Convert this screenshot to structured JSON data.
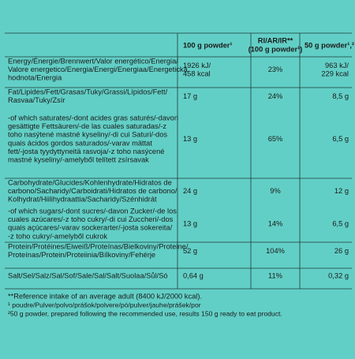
{
  "header": {
    "col_100g": "100 g powder¹",
    "col_ri": [
      "RI/AR/IR**",
      "(100 g powder¹)"
    ],
    "col_50g": "50 g powder¹,²"
  },
  "table": {
    "rows": [
      {
        "label": [
          "Energy/Énergie/Brennwert/Valor energético/Energia/",
          "Valore energetico/Energia/Energi/Energiaa/Energetická",
          "hodnota/Energia"
        ],
        "per_100g": [
          "1926 kJ/",
          "458 kcal"
        ],
        "ri": [
          "23%"
        ],
        "per_50g": [
          "963 kJ/",
          "229 kcal"
        ]
      },
      {
        "label": [
          "Fat/Lipides/Fett/Grasas/Tuky/Grassi/Lípidos/Fett/",
          "Rasvaa/Tuky/Zsír"
        ],
        "per_100g": [
          "17 g"
        ],
        "ri": [
          "24%"
        ],
        "per_50g": [
          "8,5 g"
        ]
      },
      {
        "label": [
          "-of which saturates/-dont acides gras saturés/-davon",
          "gesättigte Fettsäuren/-de las cuales saturadas/-z",
          "toho nasýtené mastné kyseliny/-di cui Saturi/-dos",
          "quais ácidos gordos saturados/-varav mättat",
          "fett/-josta tyydyttyneitä rasvoja/-z toho nasýcené",
          "mastné kyseliny/-amelyből telített zsírsavak"
        ],
        "per_100g": [
          "13 g"
        ],
        "ri": [
          "65%"
        ],
        "per_50g": [
          "6,5 g"
        ]
      },
      {
        "label": [
          "Carbohydrate/Glucides/Kohlenhydrate/Hidratos de",
          "carbono/Sacharidy/Carboidrati/Hidratos de carbono/",
          "Kolhydrat/Hiilihydraattia/Sacharidy/Szénhidrát"
        ],
        "per_100g": [
          "24 g"
        ],
        "ri": [
          "9%"
        ],
        "per_50g": [
          "12 g"
        ]
      },
      {
        "label": [
          "-of which sugars/-dont sucres/-davon Zucker/-de los",
          "cuales azúcares/-z toho cukry/-di cui Zuccheri/-dos",
          "quais açúcares/-varav sockerarter/-josta sokereita/",
          "-z toho cukry/-amelyből cukrok"
        ],
        "per_100g": [
          "13 g"
        ],
        "ri": [
          "14%"
        ],
        "per_50g": [
          "6,5 g"
        ]
      },
      {
        "label": [
          "Protein/Protéines/Eiweiß/Proteínas/Bielkoviny/Proteine/",
          "Proteínas/Protein/Proteiinia/Bílkoviny/Fehérje"
        ],
        "per_100g": [
          "52 g"
        ],
        "ri": [
          "104%"
        ],
        "per_50g": [
          "26 g"
        ]
      },
      {
        "label": [
          "Salt/Sel/Salz/Sal/Sof/Sale/Sal/Salt/Suolaa/Sůl/Só"
        ],
        "per_100g": [
          "0,64 g"
        ],
        "ri": [
          "11%"
        ],
        "per_50g": [
          "0,32 g"
        ]
      }
    ]
  },
  "footnotes": [
    "**Reference intake of an average adult (8400 kJ/2000 kcal).",
    "¹ poudre/Pulver/polvo/prášok/polvere/pó/pulver/jauhe/prášek/por",
    "²50 g powder, prepared following the recommended use, results 150 g ready to eat product."
  ]
}
